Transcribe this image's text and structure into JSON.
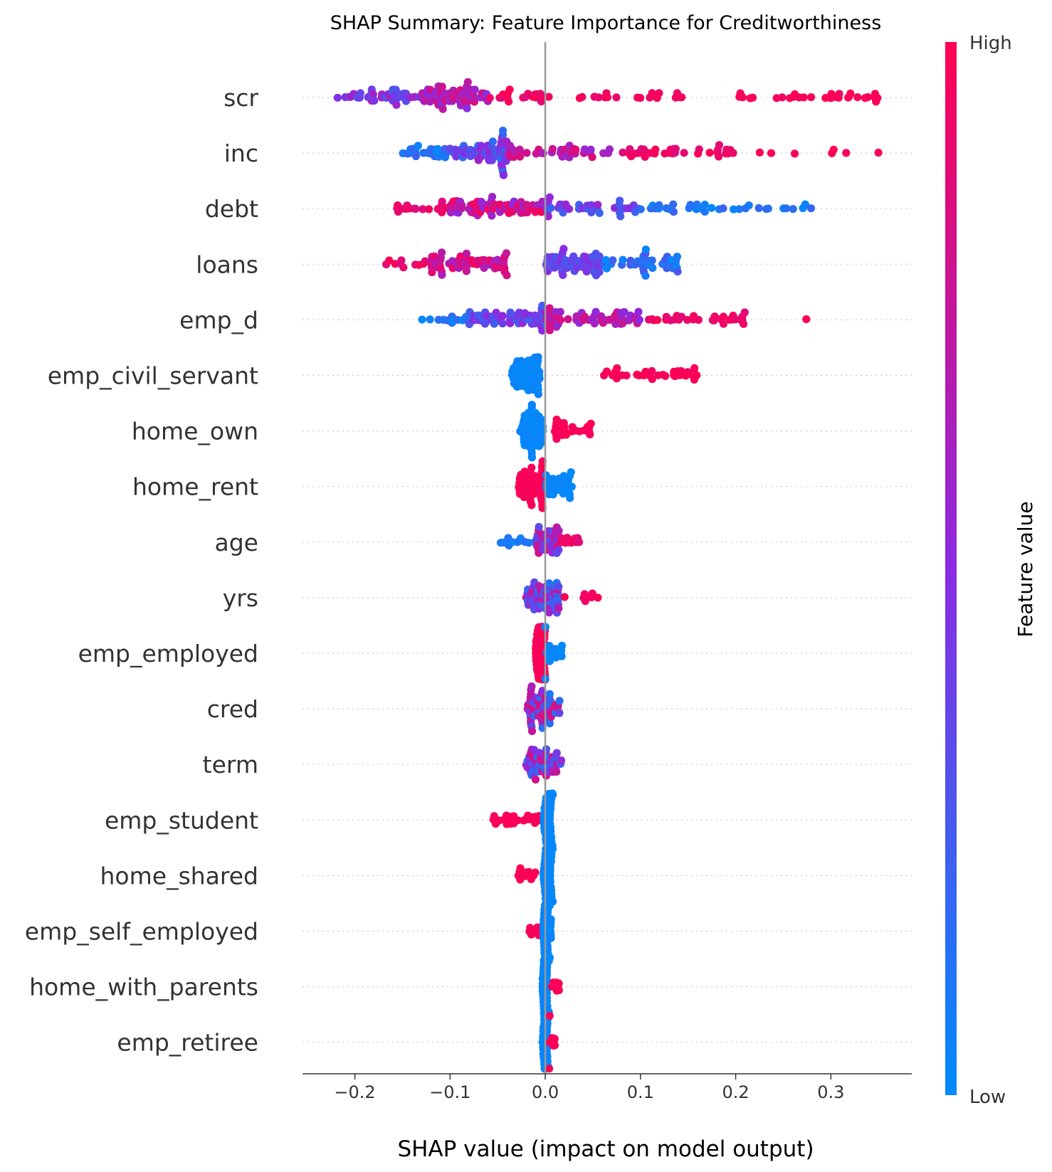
{
  "chart_data": {
    "type": "scatter",
    "subtype": "shap-beeswarm",
    "title": "SHAP Summary: Feature Importance for Creditworthiness",
    "xlabel": "SHAP value (impact on model output)",
    "ylabel": "",
    "xlim": [
      -0.255,
      0.385
    ],
    "xticks": [
      -0.2,
      -0.1,
      0.0,
      0.1,
      0.2,
      0.3
    ],
    "xtick_labels": [
      "−0.2",
      "−0.1",
      "0.0",
      "0.1",
      "0.2",
      "0.3"
    ],
    "colorbar": {
      "label": "Feature value",
      "high_label": "High",
      "low_label": "Low",
      "low_color": "#008bfb",
      "mid_color": "#8a2be2",
      "high_color": "#ff0052"
    },
    "features": [
      {
        "name": "scr",
        "clusters": [
          {
            "x": [
              -0.22,
              -0.13
            ],
            "n": 40,
            "v": [
              0.25,
              0.65
            ]
          },
          {
            "x": [
              -0.13,
              -0.06
            ],
            "n": 70,
            "v": [
              0.45,
              0.85
            ]
          },
          {
            "x": [
              -0.06,
              0.01
            ],
            "n": 20,
            "v": [
              0.8,
              1
            ]
          },
          {
            "x": [
              0.03,
              0.17
            ],
            "n": 18,
            "v": [
              0.9,
              1
            ]
          },
          {
            "x": [
              0.2,
              0.35
            ],
            "n": 30,
            "v": [
              0.95,
              1
            ]
          }
        ]
      },
      {
        "name": "inc",
        "clusters": [
          {
            "x": [
              -0.15,
              -0.1
            ],
            "n": 25,
            "v": [
              0.0,
              0.25
            ]
          },
          {
            "x": [
              -0.1,
              -0.04
            ],
            "n": 60,
            "v": [
              0.15,
              0.6
            ]
          },
          {
            "x": [
              -0.04,
              0.08
            ],
            "n": 40,
            "v": [
              0.55,
              0.9
            ]
          },
          {
            "x": [
              0.08,
              0.2
            ],
            "n": 35,
            "v": [
              0.85,
              1
            ]
          },
          {
            "x": [
              0.22,
              0.36
            ],
            "n": 7,
            "v": [
              0.95,
              1
            ]
          }
        ]
      },
      {
        "name": "debt",
        "clusters": [
          {
            "x": [
              -0.16,
              -0.1
            ],
            "n": 18,
            "v": [
              0.85,
              1
            ]
          },
          {
            "x": [
              -0.1,
              0.0
            ],
            "n": 75,
            "v": [
              0.5,
              1
            ]
          },
          {
            "x": [
              0.0,
              0.1
            ],
            "n": 40,
            "v": [
              0.2,
              0.6
            ]
          },
          {
            "x": [
              0.1,
              0.28
            ],
            "n": 35,
            "v": [
              0.0,
              0.2
            ]
          }
        ]
      },
      {
        "name": "loans",
        "clusters": [
          {
            "x": [
              -0.17,
              -0.12
            ],
            "n": 10,
            "v": [
              0.85,
              1
            ]
          },
          {
            "x": [
              -0.12,
              -0.04
            ],
            "n": 65,
            "v": [
              0.6,
              0.95
            ]
          },
          {
            "x": [
              0.0,
              0.06
            ],
            "n": 65,
            "v": [
              0.25,
              0.5
            ]
          },
          {
            "x": [
              0.06,
              0.15
            ],
            "n": 40,
            "v": [
              0.0,
              0.3
            ]
          }
        ]
      },
      {
        "name": "emp_d",
        "clusters": [
          {
            "x": [
              -0.13,
              -0.08
            ],
            "n": 15,
            "v": [
              0.0,
              0.25
            ]
          },
          {
            "x": [
              -0.08,
              0.0
            ],
            "n": 60,
            "v": [
              0.2,
              0.55
            ]
          },
          {
            "x": [
              0.0,
              0.1
            ],
            "n": 60,
            "v": [
              0.5,
              0.85
            ]
          },
          {
            "x": [
              0.1,
              0.21
            ],
            "n": 30,
            "v": [
              0.85,
              1
            ]
          },
          {
            "x": [
              0.27,
              0.275
            ],
            "n": 1,
            "v": [
              1,
              1
            ]
          }
        ]
      },
      {
        "name": "emp_civil_servant",
        "clusters": [
          {
            "x": [
              -0.035,
              -0.005
            ],
            "n": 70,
            "v": [
              0.0,
              0.05
            ]
          },
          {
            "x": [
              0.06,
              0.16
            ],
            "n": 35,
            "v": [
              0.95,
              1
            ]
          }
        ]
      },
      {
        "name": "home_own",
        "clusters": [
          {
            "x": [
              -0.027,
              -0.002
            ],
            "n": 65,
            "v": [
              0.0,
              0.05
            ]
          },
          {
            "x": [
              0.01,
              0.05
            ],
            "n": 28,
            "v": [
              0.95,
              1
            ]
          }
        ]
      },
      {
        "name": "home_rent",
        "clusters": [
          {
            "x": [
              -0.028,
              0.0
            ],
            "n": 60,
            "v": [
              0.95,
              1
            ]
          },
          {
            "x": [
              0.0,
              0.028
            ],
            "n": 35,
            "v": [
              0.0,
              0.05
            ]
          }
        ]
      },
      {
        "name": "age",
        "clusters": [
          {
            "x": [
              -0.05,
              -0.01
            ],
            "n": 12,
            "v": [
              0.0,
              0.15
            ]
          },
          {
            "x": [
              -0.01,
              0.015
            ],
            "n": 45,
            "v": [
              0.3,
              0.85
            ]
          },
          {
            "x": [
              0.015,
              0.04
            ],
            "n": 10,
            "v": [
              0.85,
              1
            ]
          }
        ]
      },
      {
        "name": "yrs",
        "clusters": [
          {
            "x": [
              -0.02,
              0.015
            ],
            "n": 65,
            "v": [
              0.1,
              0.8
            ]
          },
          {
            "x": [
              0.015,
              0.065
            ],
            "n": 8,
            "v": [
              0.9,
              1
            ]
          }
        ]
      },
      {
        "name": "emp_employed",
        "clusters": [
          {
            "x": [
              -0.01,
              0.0
            ],
            "n": 55,
            "v": [
              0.95,
              1
            ]
          },
          {
            "x": [
              0.0,
              0.018
            ],
            "n": 20,
            "v": [
              0.0,
              0.05
            ]
          }
        ]
      },
      {
        "name": "cred",
        "clusters": [
          {
            "x": [
              -0.02,
              0.015
            ],
            "n": 65,
            "v": [
              0.1,
              0.9
            ]
          }
        ]
      },
      {
        "name": "term",
        "clusters": [
          {
            "x": [
              -0.02,
              0.018
            ],
            "n": 60,
            "v": [
              0.1,
              0.9
            ]
          }
        ]
      },
      {
        "name": "emp_student",
        "clusters": [
          {
            "x": [
              -0.055,
              -0.005
            ],
            "n": 25,
            "v": [
              0.95,
              1
            ]
          },
          {
            "x": [
              -0.002,
              0.008
            ],
            "n": 55,
            "v": [
              0.0,
              0.05
            ]
          }
        ]
      },
      {
        "name": "home_shared",
        "clusters": [
          {
            "x": [
              -0.03,
              -0.002
            ],
            "n": 12,
            "v": [
              0.95,
              1
            ]
          },
          {
            "x": [
              -0.002,
              0.008
            ],
            "n": 55,
            "v": [
              0.0,
              0.05
            ]
          }
        ]
      },
      {
        "name": "emp_self_employed",
        "clusters": [
          {
            "x": [
              -0.018,
              -0.002
            ],
            "n": 10,
            "v": [
              0.95,
              1
            ]
          },
          {
            "x": [
              -0.002,
              0.006
            ],
            "n": 60,
            "v": [
              0.0,
              0.05
            ]
          }
        ]
      },
      {
        "name": "home_with_parents",
        "clusters": [
          {
            "x": [
              -0.003,
              0.004
            ],
            "n": 65,
            "v": [
              0.0,
              0.05
            ]
          },
          {
            "x": [
              0.004,
              0.017
            ],
            "n": 8,
            "v": [
              0.95,
              1
            ]
          }
        ]
      },
      {
        "name": "emp_retiree",
        "clusters": [
          {
            "x": [
              -0.003,
              0.004
            ],
            "n": 65,
            "v": [
              0.0,
              0.05
            ]
          },
          {
            "x": [
              0.004,
              0.015
            ],
            "n": 8,
            "v": [
              0.95,
              1
            ]
          }
        ]
      }
    ]
  }
}
